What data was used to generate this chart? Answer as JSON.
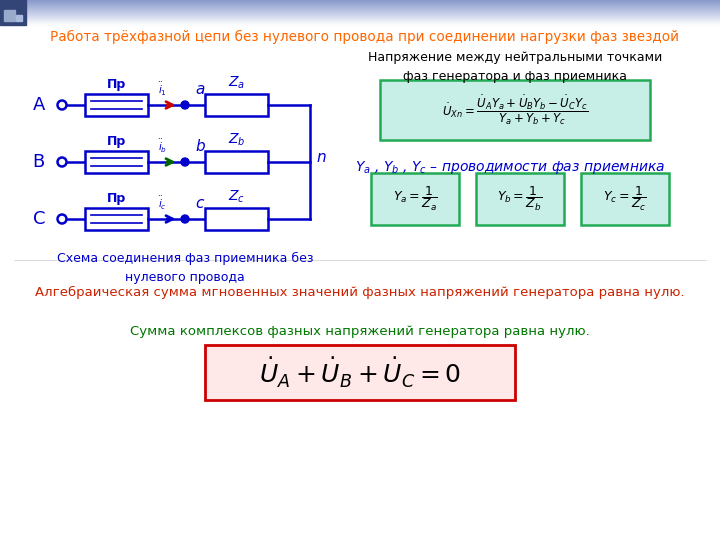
{
  "title": "Работа трёхфазной цепи без нулевого провода при соединении нагрузки фаз звездой",
  "title_color": "#FF6600",
  "bg_color": "#FFFFFF",
  "bg_gradient_top": "#8899CC",
  "circuit_color": "#0000CC",
  "label_color": "#0000CC",
  "text_color_black": "#000000",
  "text_color_red": "#CC2200",
  "text_color_green": "#007700",
  "text_color_blue": "#0000CC",
  "formula_box_color": "#C8EEE8",
  "formula_border_color": "#22AA55",
  "formula_box_bottom_color": "#FFE8E8",
  "formula_border_bottom_color": "#CC0000",
  "phase_colors_arrow": [
    "#CC0000",
    "#006600",
    "#0000CC"
  ],
  "caption": "Схема соединения фаз приемника без\nнулевого провода",
  "right_title": "Напряжение между нейтральными точками\nфаз генератора и фаз приемника",
  "conductivity_text": "$Y_a$ , $Y_b$ , $Y_c$ – проводимости фаз приемника",
  "algebraic_text": "Алгебраическая сумма мгновенных значений фазных напряжений генератора равна нулю.",
  "sum_text": "Сумма комплексов фазных напряжений генератора равна нулю."
}
